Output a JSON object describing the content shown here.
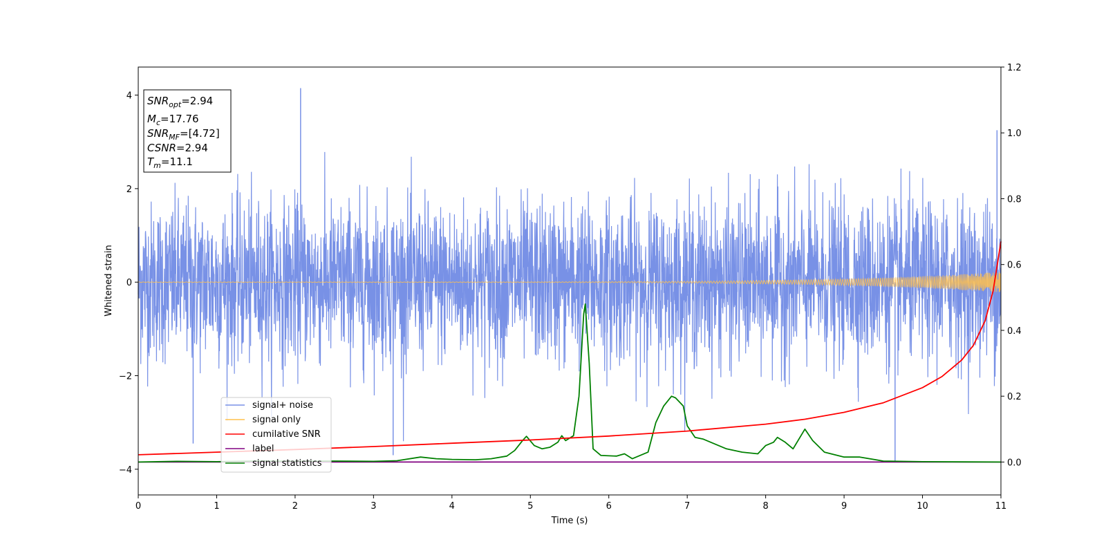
{
  "chart_data": {
    "type": "line",
    "xlabel": "Time (s)",
    "ylabel": "Whitened strain",
    "xlim": [
      0,
      11
    ],
    "ylim_left": [
      -4.55,
      4.6
    ],
    "ylim_right": [
      -0.1,
      1.2
    ],
    "x_ticks": [
      "0",
      "1",
      "2",
      "3",
      "4",
      "5",
      "6",
      "7",
      "8",
      "9",
      "10",
      "11"
    ],
    "y_ticks_left": [
      "−4",
      "−2",
      "0",
      "2",
      "4"
    ],
    "y_ticks_right": [
      "0.0",
      "0.2",
      "0.4",
      "0.6",
      "0.8",
      "1.0",
      "1.2"
    ],
    "grid": false,
    "legend_position": "lower-left",
    "info_box": {
      "snr_opt_base": "SNR",
      "snr_opt_sub": "opt",
      "snr_opt_value": "=2.94",
      "mc_base": "M",
      "mc_sub": "c",
      "mc_value": "=17.76",
      "snr_mf_base": "SNR",
      "snr_mf_sub": "MF",
      "snr_mf_value": "=[4.72]",
      "csnr_base": "CSNR",
      "csnr_value": "=2.94",
      "tm_base": "T",
      "tm_sub": "m",
      "tm_value": "=11.1"
    },
    "series": [
      {
        "name": "signal+ noise",
        "color": "#7891e6",
        "axis": "left",
        "description_values": {
          "amplitude_envelope": 2.2,
          "extreme_spikes": [
            [
              2.07,
              4.15
            ],
            [
              0.7,
              -3.45
            ],
            [
              3.25,
              -3.7
            ],
            [
              9.65,
              -3.85
            ],
            [
              10.95,
              3.25
            ]
          ]
        }
      },
      {
        "name": "signal only",
        "color": "#ffc04d",
        "axis": "left",
        "chirp": {
          "amp_start": 0.005,
          "amp_end": 0.22,
          "t_merge": 11.1
        }
      },
      {
        "name": "cumilative SNR",
        "color": "#ff0000",
        "axis": "right",
        "x": [
          0,
          1,
          2,
          3,
          4,
          5,
          6,
          7,
          8,
          8.5,
          9,
          9.5,
          10,
          10.25,
          10.5,
          10.65,
          10.8,
          10.9,
          11
        ],
        "y": [
          0.022,
          0.03,
          0.038,
          0.047,
          0.057,
          0.067,
          0.079,
          0.094,
          0.115,
          0.13,
          0.151,
          0.18,
          0.226,
          0.26,
          0.31,
          0.355,
          0.43,
          0.52,
          0.67
        ]
      },
      {
        "name": "label",
        "color": "#800080",
        "axis": "right",
        "x": [
          0,
          11
        ],
        "y": [
          0,
          0
        ]
      },
      {
        "name": "signal statistics",
        "color": "#008000",
        "axis": "right",
        "x": [
          0,
          0.5,
          1,
          1.5,
          2,
          2.5,
          3,
          3.3,
          3.6,
          3.8,
          4,
          4.3,
          4.5,
          4.7,
          4.8,
          4.9,
          4.95,
          5.05,
          5.15,
          5.25,
          5.35,
          5.4,
          5.45,
          5.55,
          5.62,
          5.68,
          5.7,
          5.75,
          5.8,
          5.9,
          6.1,
          6.2,
          6.3,
          6.5,
          6.6,
          6.7,
          6.8,
          6.85,
          6.95,
          7.0,
          7.1,
          7.2,
          7.3,
          7.5,
          7.7,
          7.9,
          8.0,
          8.1,
          8.15,
          8.25,
          8.35,
          8.45,
          8.5,
          8.6,
          8.75,
          9.0,
          9.2,
          9.5,
          10,
          11
        ],
        "y": [
          0.0,
          0.002,
          0.001,
          0.003,
          0.002,
          0.003,
          0.002,
          0.004,
          0.015,
          0.01,
          0.008,
          0.007,
          0.01,
          0.018,
          0.035,
          0.065,
          0.078,
          0.05,
          0.04,
          0.045,
          0.06,
          0.08,
          0.065,
          0.08,
          0.2,
          0.45,
          0.48,
          0.3,
          0.04,
          0.02,
          0.018,
          0.025,
          0.01,
          0.03,
          0.12,
          0.17,
          0.2,
          0.195,
          0.17,
          0.11,
          0.075,
          0.07,
          0.06,
          0.04,
          0.03,
          0.025,
          0.05,
          0.06,
          0.075,
          0.06,
          0.04,
          0.08,
          0.1,
          0.065,
          0.03,
          0.015,
          0.015,
          0.003,
          0.001,
          0.0
        ]
      }
    ]
  }
}
